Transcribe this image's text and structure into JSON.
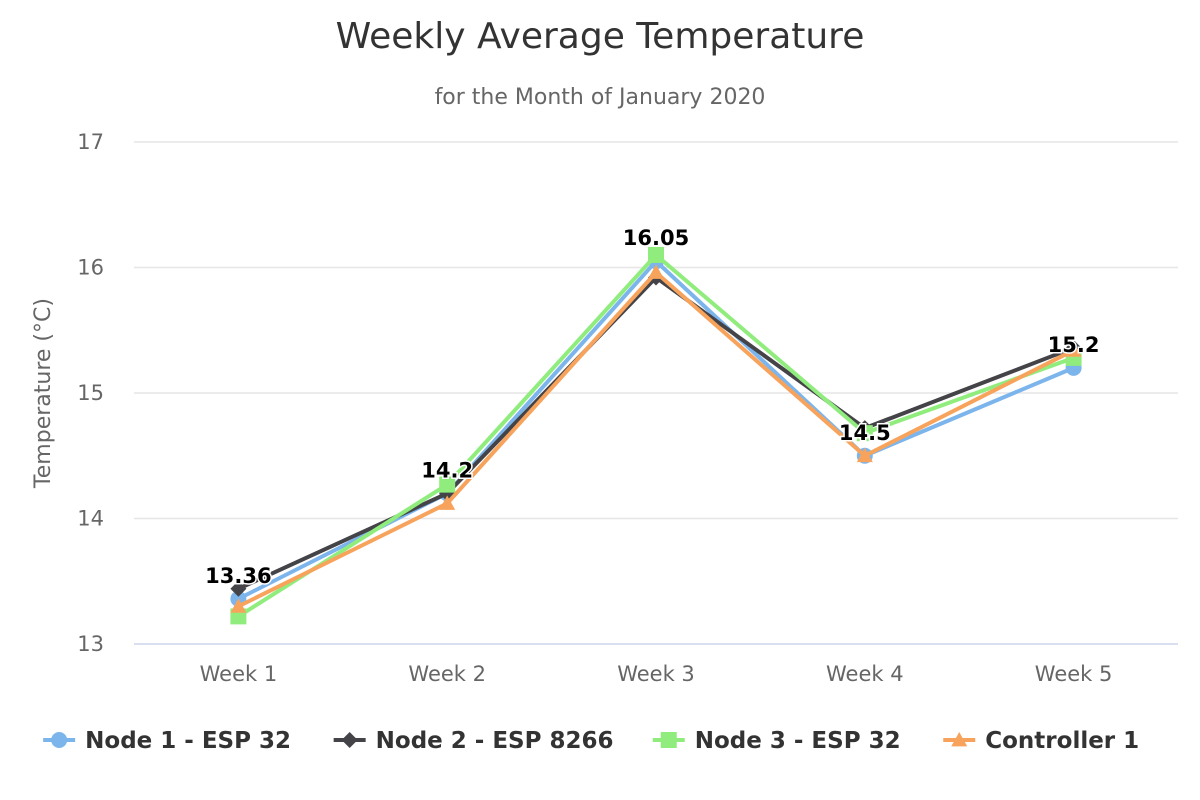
{
  "chart_data": {
    "type": "line",
    "title": "Weekly Average Temperature",
    "subtitle": "for the Month of January 2020",
    "ylabel": "Temperature (°C)",
    "xlabel": "",
    "categories": [
      "Week 1",
      "Week 2",
      "Week 3",
      "Week 4",
      "Week 5"
    ],
    "ylim": [
      13,
      17
    ],
    "yticks": [
      13,
      14,
      15,
      16,
      17
    ],
    "grid": true,
    "legend_position": "bottom",
    "series": [
      {
        "name": "Node 1 - ESP 32",
        "color": "#7cb5ec",
        "marker": "circle",
        "values": [
          13.36,
          14.2,
          16.05,
          14.5,
          15.2
        ]
      },
      {
        "name": "Node 2 - ESP 8266",
        "color": "#434348",
        "marker": "diamond",
        "values": [
          13.44,
          14.2,
          15.92,
          14.72,
          15.36
        ]
      },
      {
        "name": "Node 3 - ESP 32",
        "color": "#90ed7d",
        "marker": "square",
        "values": [
          13.22,
          14.27,
          16.1,
          14.68,
          15.28
        ]
      },
      {
        "name": "Controller 1",
        "color": "#f7a35c",
        "marker": "triangle",
        "values": [
          13.3,
          14.12,
          15.96,
          14.5,
          15.34
        ]
      }
    ],
    "data_labels": [
      {
        "category": "Week 1",
        "text": "13.36"
      },
      {
        "category": "Week 2",
        "text": "14.2"
      },
      {
        "category": "Week 3",
        "text": "16.05"
      },
      {
        "category": "Week 4",
        "text": "14.5"
      },
      {
        "category": "Week 5",
        "text": "15.2"
      }
    ]
  }
}
